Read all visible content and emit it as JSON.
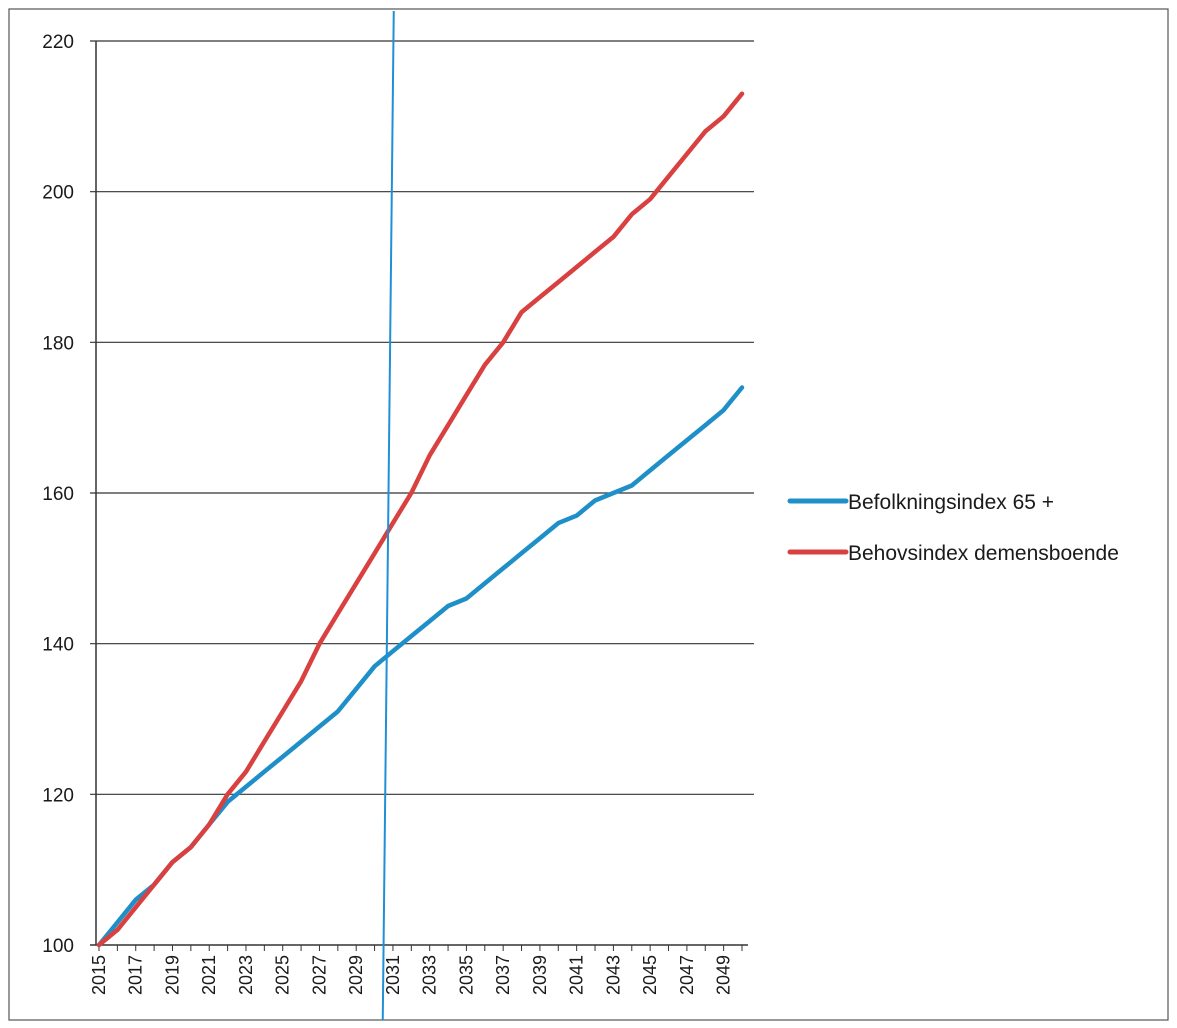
{
  "chart_data": {
    "type": "line",
    "title": "",
    "xlabel": "",
    "ylabel": "",
    "ylim": [
      100,
      220
    ],
    "y_ticks": [
      100,
      120,
      140,
      160,
      180,
      200,
      220
    ],
    "x": [
      2015,
      2016,
      2017,
      2018,
      2019,
      2020,
      2021,
      2022,
      2023,
      2024,
      2025,
      2026,
      2027,
      2028,
      2029,
      2030,
      2031,
      2032,
      2033,
      2034,
      2035,
      2036,
      2037,
      2038,
      2039,
      2040,
      2041,
      2042,
      2043,
      2044,
      2045,
      2046,
      2047,
      2048,
      2049,
      2050
    ],
    "x_tick_labels": [
      "2015",
      "2017",
      "2019",
      "2021",
      "2023",
      "2025",
      "2027",
      "2029",
      "2031",
      "2033",
      "2035",
      "2037",
      "2039",
      "2041",
      "2043",
      "2045",
      "2047",
      "2049"
    ],
    "grid": true,
    "legend_position": "right",
    "reference_line": {
      "x": 2030.5,
      "color": "#1f8fd6"
    },
    "series": [
      {
        "name": "Befolkningsindex 65 +",
        "color": "#1f8fc8",
        "values": [
          100,
          103,
          106,
          108,
          111,
          113,
          116,
          119,
          121,
          123,
          125,
          127,
          129,
          131,
          134,
          137,
          139,
          141,
          143,
          145,
          146,
          148,
          150,
          152,
          154,
          156,
          157,
          159,
          160,
          161,
          163,
          165,
          167,
          169,
          171,
          174
        ]
      },
      {
        "name": "Behovsindex demensboende",
        "color": "#d94040",
        "values": [
          100,
          102,
          105,
          108,
          111,
          113,
          116,
          120,
          123,
          127,
          131,
          135,
          140,
          144,
          148,
          152,
          156,
          160,
          165,
          169,
          173,
          177,
          180,
          184,
          186,
          188,
          190,
          192,
          194,
          197,
          199,
          202,
          205,
          208,
          210,
          213
        ]
      }
    ]
  }
}
